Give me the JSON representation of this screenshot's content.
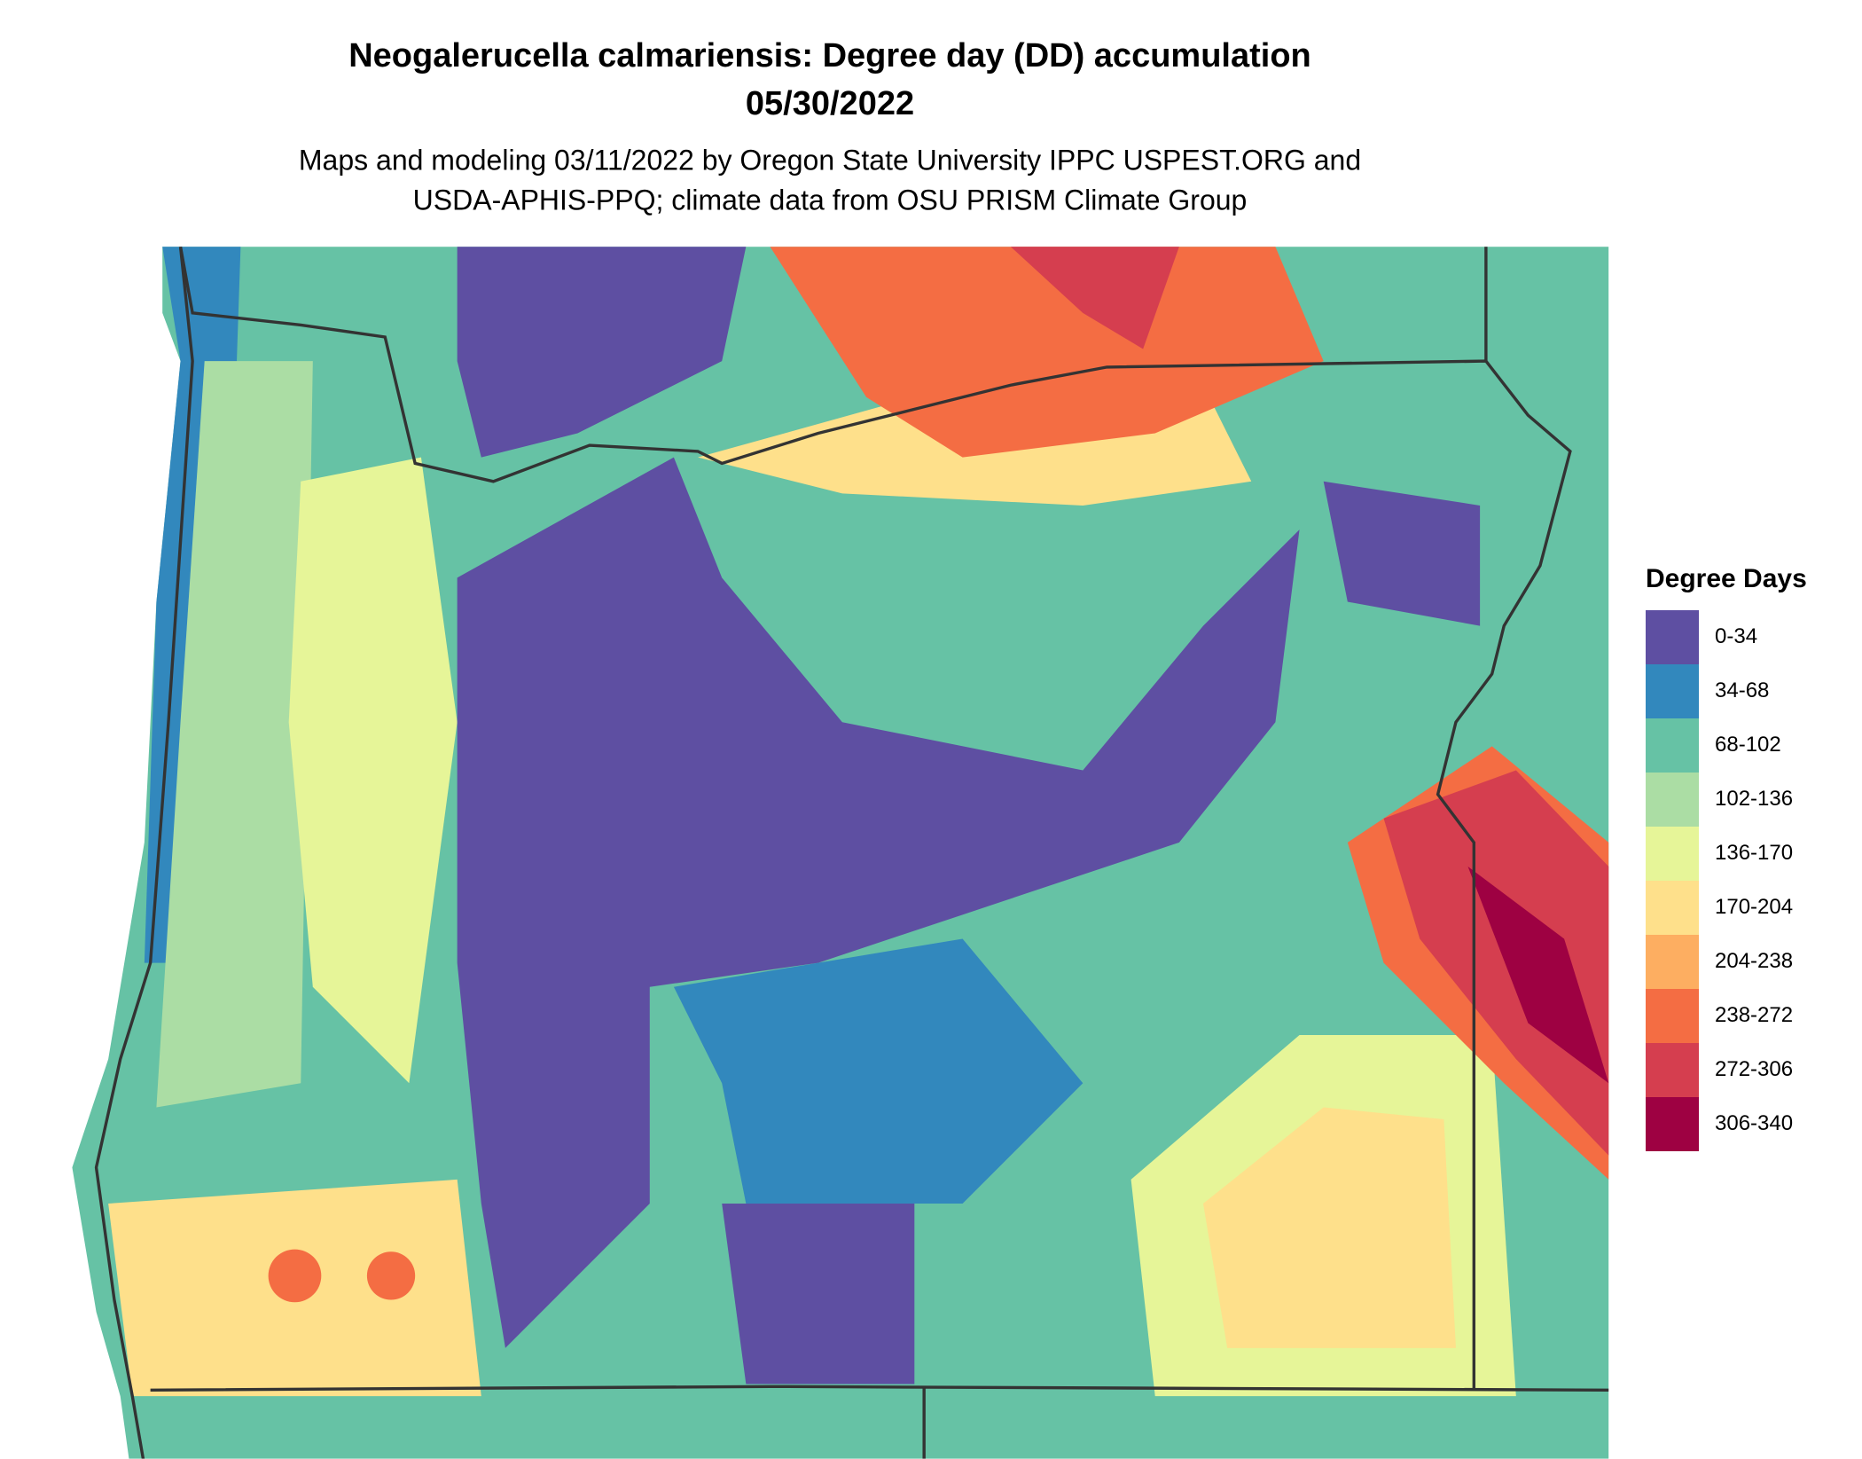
{
  "title": [
    "Neogalerucella calmariensis: Degree day (DD) accumulation",
    "05/30/2022"
  ],
  "subtitle": [
    "Maps and modeling 03/11/2022 by Oregon State University IPPC USPEST.ORG and",
    "USDA-APHIS-PPQ; climate data from OSU PRISM Climate Group"
  ],
  "legend": {
    "title": "Degree Days",
    "items": [
      {
        "label": "0-34",
        "color": "#5e4fa2"
      },
      {
        "label": "34-68",
        "color": "#3288bd"
      },
      {
        "label": "68-102",
        "color": "#66c2a5"
      },
      {
        "label": "102-136",
        "color": "#abdda4"
      },
      {
        "label": "136-170",
        "color": "#e6f598"
      },
      {
        "label": "170-204",
        "color": "#fee08b"
      },
      {
        "label": "204-238",
        "color": "#fdae61"
      },
      {
        "label": "238-272",
        "color": "#f46d43"
      },
      {
        "label": "272-306",
        "color": "#d53e4f"
      },
      {
        "label": "306-340",
        "color": "#9e0142"
      }
    ]
  }
}
